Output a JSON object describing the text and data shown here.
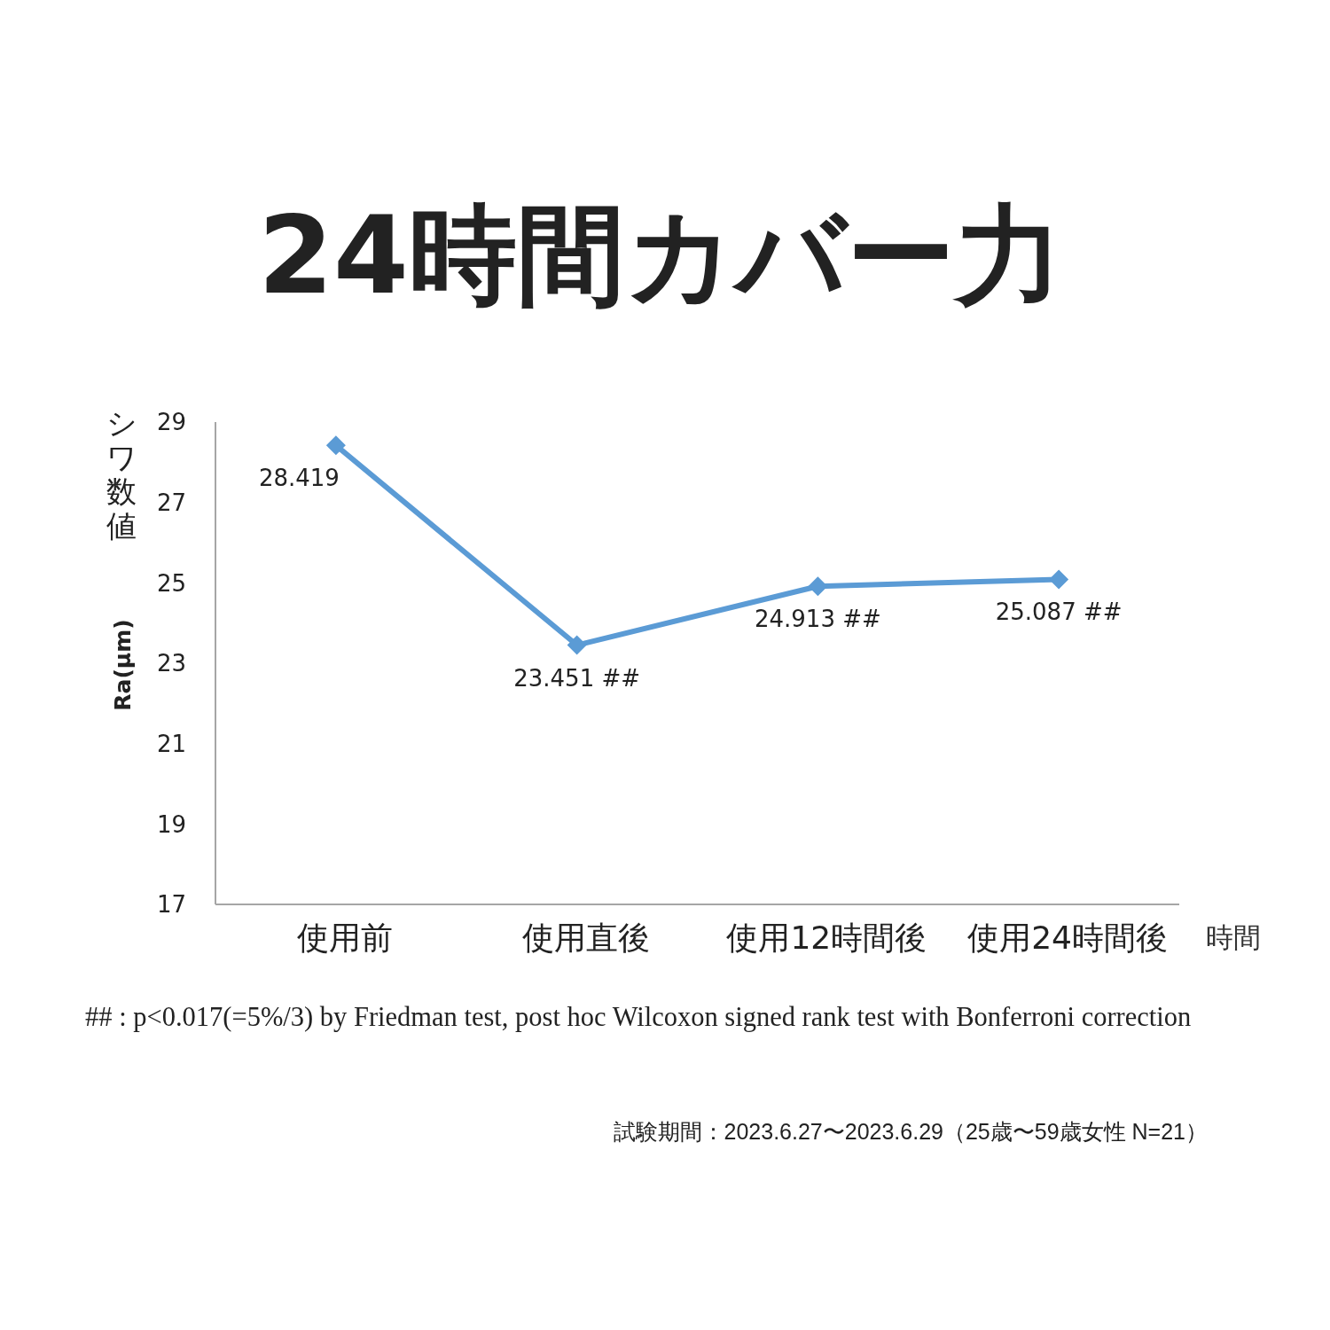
{
  "chart_data": {
    "type": "line",
    "title": "24時間カバー力",
    "xlabel": "時間",
    "ylabel": "シワ数値 Ra(μm)",
    "categories": [
      "使用前",
      "使用直後",
      "使用12時間後",
      "使用24時間後"
    ],
    "series": [
      {
        "color": "#5b9bd5",
        "values": [
          28.419,
          23.451,
          24.913,
          25.087
        ],
        "value_labels": [
          "28.419",
          "23.451 ##",
          "24.913 ##",
          "25.087 ##"
        ]
      }
    ],
    "ylim": [
      17,
      29
    ],
    "yticks": [
      17,
      19,
      21,
      23,
      25,
      27,
      29
    ],
    "marker": "diamond",
    "line_style": "solid",
    "annotations": [
      "## : p<0.017(=5%/3) by Friedman test, post hoc Wilcoxon signed rank test with Bonferroni correction",
      "試験期間：2023.6.27〜2023.6.29（25歳〜59歳女性 N=21）"
    ]
  }
}
